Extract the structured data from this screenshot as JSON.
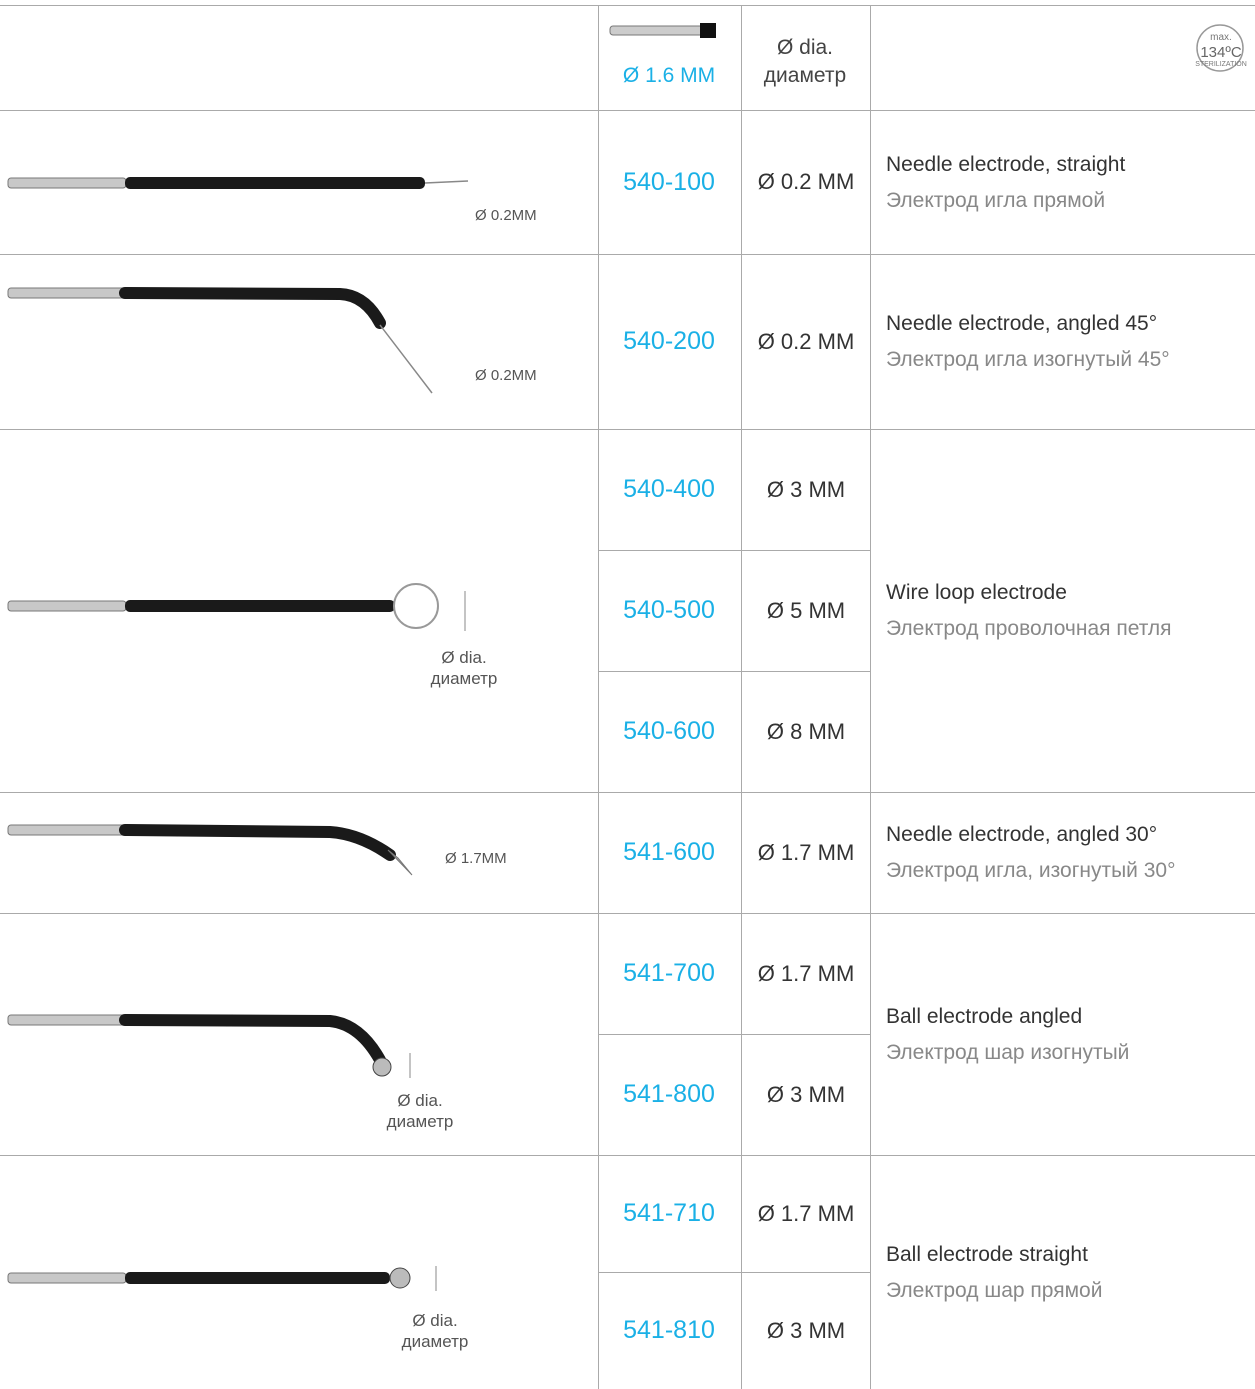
{
  "header": {
    "code_label": "Ø 1.6  MM",
    "dia_label": [
      "Ø dia.",
      "диаметр"
    ],
    "badge": [
      "max.",
      "134ºC",
      "STERILIZATION"
    ]
  },
  "groups": [
    {
      "image_label": [
        "Ø 0.2MM"
      ],
      "items": [
        {
          "code": "540-100",
          "dia": "Ø 0.2 MM"
        }
      ],
      "desc_en": "Needle electrode, straight",
      "desc_ru": "Электрод игла прямой"
    },
    {
      "image_label": [
        "Ø 0.2MM"
      ],
      "items": [
        {
          "code": "540-200",
          "dia": "Ø 0.2 MM"
        }
      ],
      "desc_en": "Needle electrode, angled 45°",
      "desc_ru": "Электрод игла изогнутый 45°"
    },
    {
      "image_label": [
        "Ø dia.",
        "диаметр"
      ],
      "items": [
        {
          "code": "540-400",
          "dia": "Ø 3 MM"
        },
        {
          "code": "540-500",
          "dia": "Ø 5 MM"
        },
        {
          "code": "540-600",
          "dia": "Ø 8 MM"
        }
      ],
      "desc_en": "Wire loop electrode",
      "desc_ru": "Электрод проволочная петля"
    },
    {
      "image_label": [
        "Ø 1.7MM"
      ],
      "items": [
        {
          "code": "541-600",
          "dia": "Ø 1.7 MM"
        }
      ],
      "desc_en": "Needle electrode, angled 30°",
      "desc_ru": "Электрод игла, изогнутый 30°"
    },
    {
      "image_label": [
        "Ø dia.",
        "диаметр"
      ],
      "items": [
        {
          "code": "541-700",
          "dia": "Ø 1.7 MM"
        },
        {
          "code": "541-800",
          "dia": "Ø 3 MM"
        }
      ],
      "desc_en": "Ball electrode angled",
      "desc_ru": "Электрод шар изогнутый"
    },
    {
      "image_label": [
        "Ø dia.",
        "диаметр"
      ],
      "items": [
        {
          "code": "541-710",
          "dia": "Ø 1.7 MM"
        },
        {
          "code": "541-810",
          "dia": "Ø 3 MM"
        }
      ],
      "desc_en": "Ball electrode straight",
      "desc_ru": "Электрод шар прямой"
    }
  ]
}
